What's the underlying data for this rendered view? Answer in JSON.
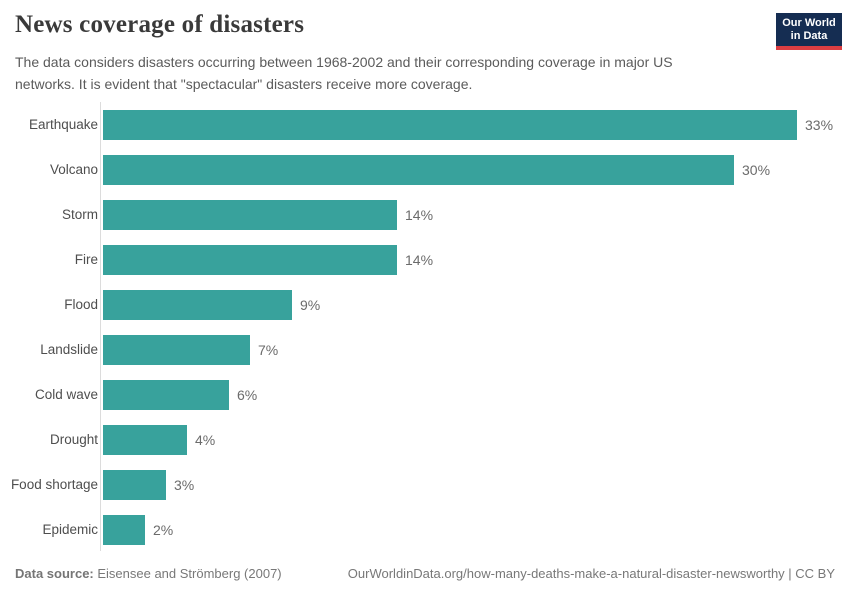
{
  "header": {
    "title": "News coverage of disasters",
    "subtitle": "The data considers disasters occurring between 1968-2002 and their corresponding coverage in major US networks. It is evident that \"spectacular\" disasters receive more coverage.",
    "logo": {
      "line1": "Our World",
      "line2": "in Data"
    }
  },
  "chart_data": {
    "type": "bar",
    "orientation": "horizontal",
    "title": "News coverage of disasters",
    "categories": [
      "Earthquake",
      "Volcano",
      "Storm",
      "Fire",
      "Flood",
      "Landslide",
      "Cold wave",
      "Drought",
      "Food shortage",
      "Epidemic"
    ],
    "values": [
      33,
      30,
      14,
      14,
      9,
      7,
      6,
      4,
      3,
      2
    ],
    "value_labels": [
      "33%",
      "30%",
      "14%",
      "14%",
      "9%",
      "7%",
      "6%",
      "4%",
      "3%",
      "2%"
    ],
    "unit": "%",
    "xlabel": "",
    "ylabel": "",
    "xlim": [
      0,
      33
    ],
    "grid": false,
    "legend": "none",
    "bar_color": "#38a29c"
  },
  "footer": {
    "datasource_label": "Data source:",
    "datasource_value": " Eisensee and Strömberg (2007)",
    "url_text": "OurWorldinData.org/how-many-deaths-make-a-natural-disaster-newsworthy | CC BY"
  },
  "colors": {
    "bar": "#38a29c",
    "axis_line": "#dcdcdc",
    "title_text": "#3a3a3a",
    "subtitle_text": "#5b5b5b",
    "category_text": "#4e4e4e",
    "value_text": "#6b6b6b",
    "footer_text": "#787878",
    "logo_bg": "#152d52",
    "logo_accent": "#dc3e42",
    "background": "#ffffff"
  }
}
